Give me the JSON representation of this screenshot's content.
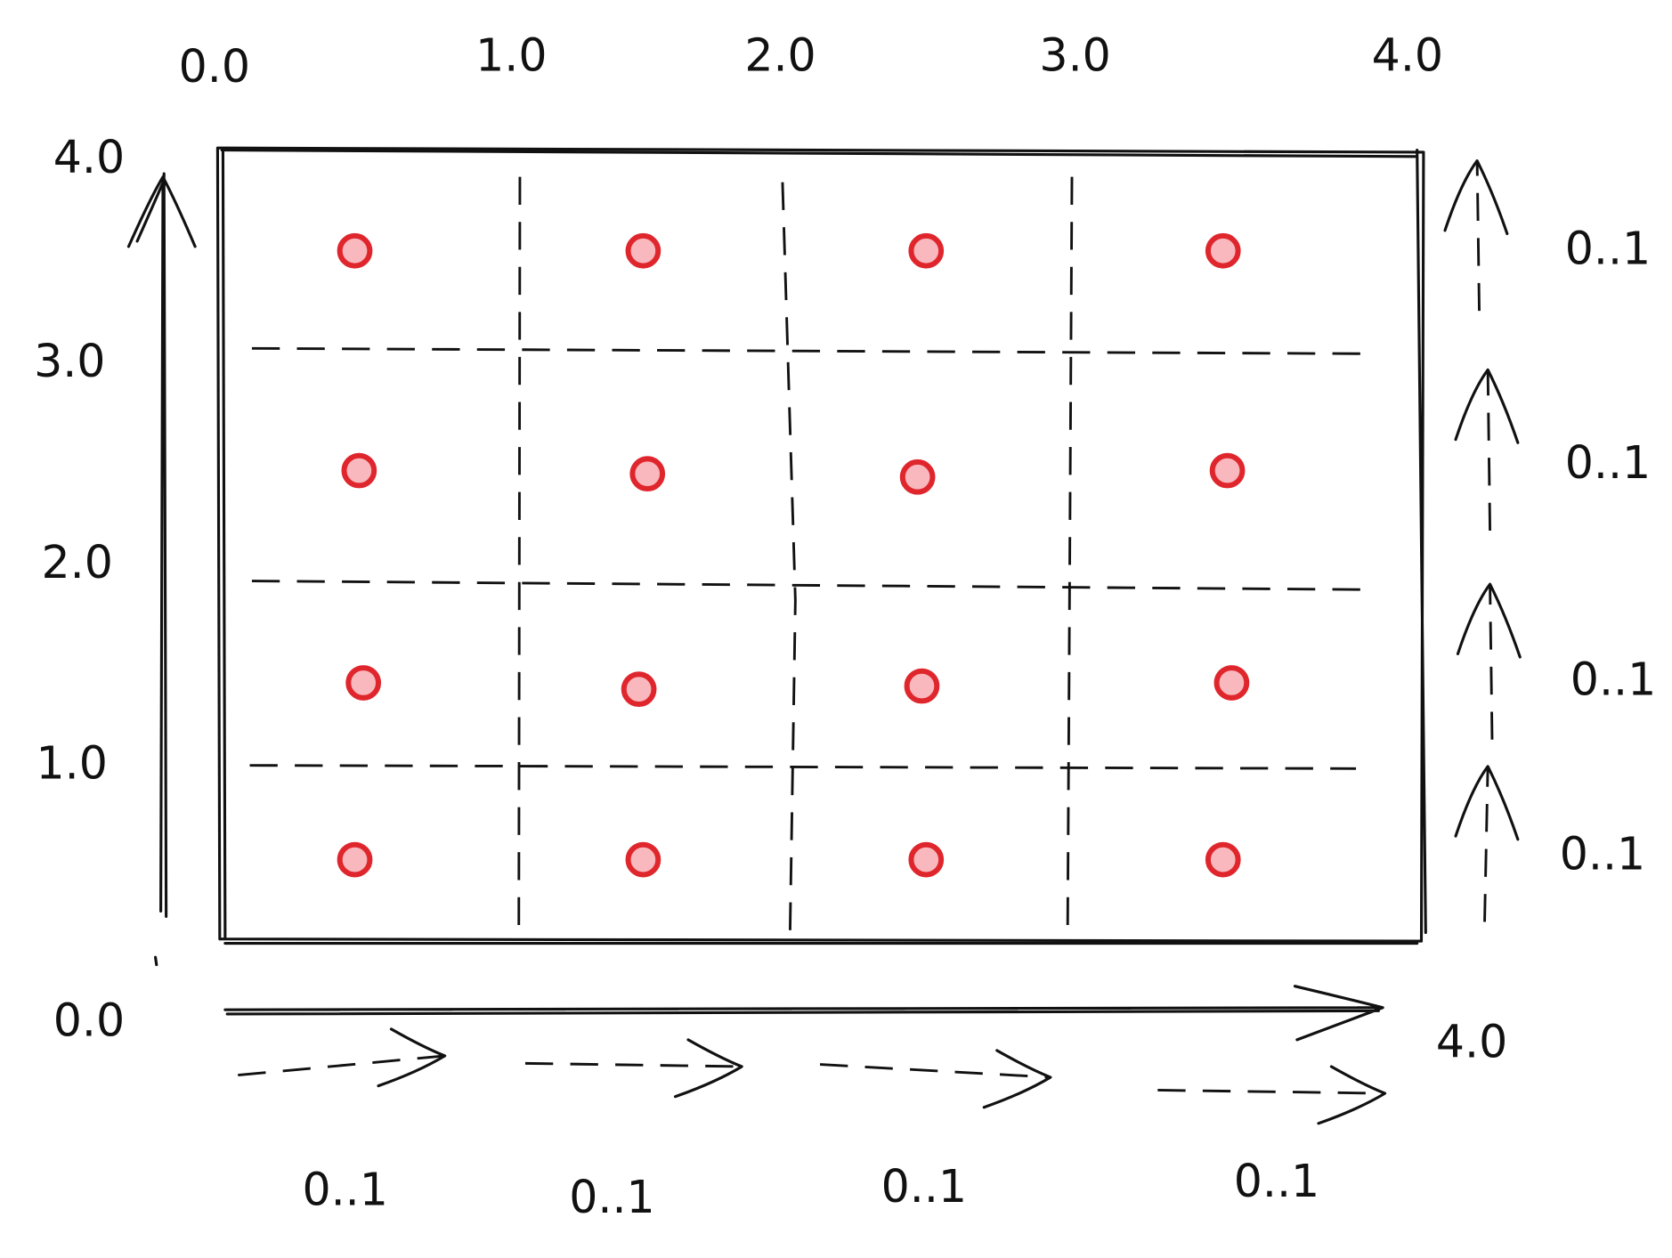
{
  "top_axis": {
    "labels": [
      "0.0",
      "1.0",
      "2.0",
      "3.0",
      "4.0"
    ]
  },
  "left_axis": {
    "labels": [
      "4.0",
      "3.0",
      "2.0",
      "1.0"
    ]
  },
  "bottom_axis": {
    "start": "0.0",
    "end": "4.0",
    "step_labels": [
      "0..1",
      "0..1",
      "0..1",
      "0..1"
    ]
  },
  "right_axis": {
    "step_labels": [
      "0..1",
      "0..1",
      "0..1",
      "0..1"
    ]
  }
}
